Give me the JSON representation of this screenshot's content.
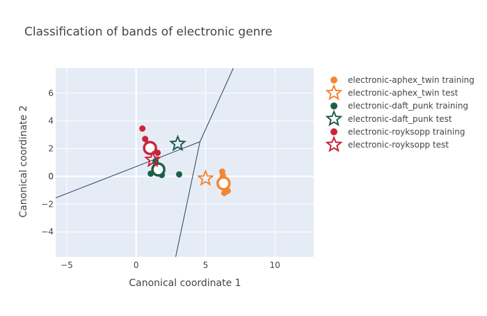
{
  "chart_data": {
    "type": "scatter",
    "title": "Classification of bands of electronic genre",
    "xlabel": "Canonical coordinate 1",
    "ylabel": "Canonical coordinate 2",
    "xlim": [
      -5.8,
      12.8
    ],
    "ylim": [
      -5.8,
      7.8
    ],
    "xticks": [
      -5,
      0,
      5,
      10
    ],
    "yticks": [
      -4,
      -2,
      0,
      2,
      4,
      6
    ],
    "grid": true,
    "legend_position": "right",
    "decision_boundaries": [
      {
        "x": [
          -5.8,
          4.6
        ],
        "y": [
          -1.55,
          2.5
        ]
      },
      {
        "x": [
          4.6,
          7.0
        ],
        "y": [
          2.5,
          7.8
        ]
      },
      {
        "x": [
          4.6,
          2.85
        ],
        "y": [
          2.5,
          -5.8
        ]
      }
    ],
    "series": [
      {
        "name": "electronic-aphex_twin training",
        "role": "training",
        "color": "#F58631",
        "points": [
          [
            6.2,
            0.35
          ],
          [
            6.25,
            0.05
          ],
          [
            6.3,
            -0.2
          ],
          [
            6.45,
            -0.8
          ],
          [
            6.35,
            -1.2
          ],
          [
            6.6,
            -1.05
          ],
          [
            6.5,
            -0.45
          ]
        ],
        "centroid": [
          6.3,
          -0.5
        ]
      },
      {
        "name": "electronic-aphex_twin test",
        "role": "test",
        "color": "#F58631",
        "points": [
          [
            5.0,
            -0.15
          ]
        ]
      },
      {
        "name": "electronic-daft_punk training",
        "role": "training",
        "color": "#1E5E46",
        "points": [
          [
            1.4,
            1.1
          ],
          [
            1.05,
            0.2
          ],
          [
            1.85,
            0.1
          ],
          [
            3.1,
            0.15
          ],
          [
            1.5,
            0.8
          ]
        ],
        "centroid": [
          1.6,
          0.5
        ]
      },
      {
        "name": "electronic-daft_punk test",
        "role": "test",
        "color": "#1E5E46",
        "points": [
          [
            3.0,
            2.35
          ]
        ]
      },
      {
        "name": "electronic-royksopp training",
        "role": "training",
        "color": "#C9243A",
        "points": [
          [
            0.45,
            3.45
          ],
          [
            0.65,
            2.7
          ],
          [
            1.55,
            1.7
          ],
          [
            1.25,
            1.85
          ],
          [
            0.85,
            2.35
          ]
        ],
        "centroid": [
          1.0,
          2.05
        ]
      },
      {
        "name": "electronic-royksopp test",
        "role": "test",
        "color": "#C9243A",
        "points": [
          [
            1.2,
            1.2
          ]
        ]
      }
    ]
  }
}
